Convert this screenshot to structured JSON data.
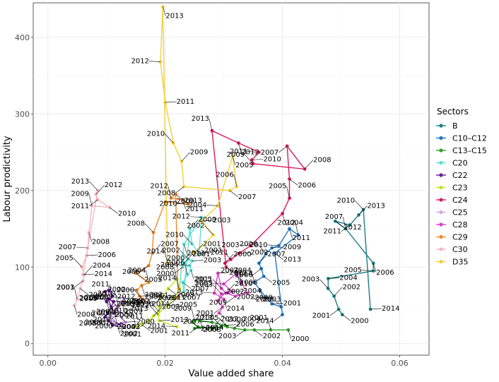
{
  "chart_data": {
    "type": "line",
    "title": "",
    "xlabel": "Value added share",
    "ylabel": "Labour prodictivity",
    "xlim": [
      -0.0025,
      0.065
    ],
    "ylim": [
      -15,
      445
    ],
    "x_ticks": [
      0.0,
      0.02,
      0.04,
      0.06
    ],
    "x_tick_labels": [
      "0.00",
      "0.02",
      "0.04",
      "0.06"
    ],
    "y_ticks": [
      0,
      100,
      200,
      300,
      400
    ],
    "y_tick_labels": [
      "0",
      "100",
      "200",
      "300",
      "400"
    ],
    "grid": true,
    "legend": {
      "title": "Sectors",
      "position": "right"
    },
    "series": [
      {
        "name": "B",
        "color": "#1b7f85",
        "points": [
          {
            "label": "2000",
            "x": 0.0502,
            "y": 38
          },
          {
            "label": "2001",
            "x": 0.0496,
            "y": 45
          },
          {
            "label": "2002",
            "x": 0.0488,
            "y": 62
          },
          {
            "label": "2003",
            "x": 0.0478,
            "y": 72
          },
          {
            "label": "2004",
            "x": 0.0478,
            "y": 85
          },
          {
            "label": "2005",
            "x": 0.0555,
            "y": 95
          },
          {
            "label": "2006",
            "x": 0.0555,
            "y": 105
          },
          {
            "label": "2007",
            "x": 0.0508,
            "y": 150
          },
          {
            "label": "2012",
            "x": 0.049,
            "y": 160
          },
          {
            "label": "2011",
            "x": 0.0515,
            "y": 155
          },
          {
            "label": "2013",
            "x": 0.053,
            "y": 168
          },
          {
            "label": "2010",
            "x": 0.0538,
            "y": 175
          },
          {
            "label": "2014",
            "x": 0.055,
            "y": 45
          }
        ]
      },
      {
        "name": "C10–C12",
        "color": "#1f78c4",
        "points": [
          {
            "label": "2000",
            "x": 0.0398,
            "y": 48
          },
          {
            "label": "2001",
            "x": 0.0382,
            "y": 52
          },
          {
            "label": "2002",
            "x": 0.0372,
            "y": 60
          },
          {
            "label": "2003",
            "x": 0.0362,
            "y": 70
          },
          {
            "label": "2004",
            "x": 0.0352,
            "y": 80
          },
          {
            "label": "2005",
            "x": 0.0368,
            "y": 88
          },
          {
            "label": "2006",
            "x": 0.0364,
            "y": 98
          },
          {
            "label": "2007",
            "x": 0.036,
            "y": 105
          },
          {
            "label": "2008",
            "x": 0.0372,
            "y": 118
          },
          {
            "label": "2009",
            "x": 0.0382,
            "y": 125
          },
          {
            "label": "2010",
            "x": 0.0394,
            "y": 128
          },
          {
            "label": "2011",
            "x": 0.0412,
            "y": 150
          },
          {
            "label": "2012",
            "x": 0.0427,
            "y": 142
          },
          {
            "label": "2013",
            "x": 0.0387,
            "y": 118
          },
          {
            "label": "2014",
            "x": 0.04,
            "y": 38
          }
        ]
      },
      {
        "name": "C13–C15",
        "color": "#33a02c",
        "points": [
          {
            "label": "2000",
            "x": 0.041,
            "y": 18
          },
          {
            "label": "2001",
            "x": 0.038,
            "y": 18
          },
          {
            "label": "2002",
            "x": 0.0352,
            "y": 18
          },
          {
            "label": "2003",
            "x": 0.0336,
            "y": 18
          },
          {
            "label": "2004",
            "x": 0.0318,
            "y": 20
          },
          {
            "label": "2005",
            "x": 0.0306,
            "y": 22
          },
          {
            "label": "2006",
            "x": 0.0302,
            "y": 24
          },
          {
            "label": "2007",
            "x": 0.028,
            "y": 28
          },
          {
            "label": "2008",
            "x": 0.026,
            "y": 30
          },
          {
            "label": "2009",
            "x": 0.025,
            "y": 30
          },
          {
            "label": "2010",
            "x": 0.0246,
            "y": 28
          },
          {
            "label": "2011",
            "x": 0.0256,
            "y": 22
          },
          {
            "label": "2012",
            "x": 0.028,
            "y": 20
          },
          {
            "label": "2013",
            "x": 0.0296,
            "y": 22
          },
          {
            "label": "2014",
            "x": 0.025,
            "y": 20
          }
        ]
      },
      {
        "name": "C20",
        "color": "#5ee0d2",
        "points": [
          {
            "label": "2000",
            "x": 0.023,
            "y": 100
          },
          {
            "label": "2001",
            "x": 0.0232,
            "y": 105
          },
          {
            "label": "2002",
            "x": 0.024,
            "y": 110
          },
          {
            "label": "2003",
            "x": 0.0246,
            "y": 108
          },
          {
            "label": "2004",
            "x": 0.0242,
            "y": 102
          },
          {
            "label": "2005",
            "x": 0.0244,
            "y": 96
          },
          {
            "label": "2006",
            "x": 0.0238,
            "y": 90
          },
          {
            "label": "2007",
            "x": 0.023,
            "y": 80
          },
          {
            "label": "2008",
            "x": 0.0232,
            "y": 68
          },
          {
            "label": "2009",
            "x": 0.0242,
            "y": 150
          },
          {
            "label": "2010",
            "x": 0.0246,
            "y": 130
          },
          {
            "label": "2011",
            "x": 0.0258,
            "y": 118
          },
          {
            "label": "2012",
            "x": 0.0262,
            "y": 165
          },
          {
            "label": "2013",
            "x": 0.0232,
            "y": 130
          },
          {
            "label": "2014",
            "x": 0.0224,
            "y": 70
          }
        ]
      },
      {
        "name": "C22",
        "color": "#6a1b9a",
        "points": [
          {
            "label": "2000",
            "x": 0.0132,
            "y": 28
          },
          {
            "label": "2001",
            "x": 0.0125,
            "y": 26
          },
          {
            "label": "2002",
            "x": 0.0118,
            "y": 25
          },
          {
            "label": "2003",
            "x": 0.011,
            "y": 24
          },
          {
            "label": "2004",
            "x": 0.0104,
            "y": 30
          },
          {
            "label": "2005",
            "x": 0.0098,
            "y": 35
          },
          {
            "label": "2006",
            "x": 0.0102,
            "y": 40
          },
          {
            "label": "2007",
            "x": 0.0108,
            "y": 48
          },
          {
            "label": "2008",
            "x": 0.0112,
            "y": 55
          },
          {
            "label": "2009",
            "x": 0.0104,
            "y": 58
          },
          {
            "label": "2010",
            "x": 0.01,
            "y": 55
          },
          {
            "label": "2011",
            "x": 0.011,
            "y": 62
          },
          {
            "label": "2012",
            "x": 0.0104,
            "y": 70
          },
          {
            "label": "2013",
            "x": 0.0098,
            "y": 68
          },
          {
            "label": "2014",
            "x": 0.0112,
            "y": 40
          }
        ]
      },
      {
        "name": "C23",
        "color": "#c7e22d",
        "points": [
          {
            "label": "2000",
            "x": 0.015,
            "y": 22
          },
          {
            "label": "2001",
            "x": 0.016,
            "y": 25
          },
          {
            "label": "2002",
            "x": 0.0172,
            "y": 30
          },
          {
            "label": "2003",
            "x": 0.018,
            "y": 36
          },
          {
            "label": "2004",
            "x": 0.019,
            "y": 42
          },
          {
            "label": "2005",
            "x": 0.0205,
            "y": 50
          },
          {
            "label": "2006",
            "x": 0.0215,
            "y": 60
          },
          {
            "label": "2007",
            "x": 0.0225,
            "y": 72
          },
          {
            "label": "2008",
            "x": 0.022,
            "y": 84
          },
          {
            "label": "2009",
            "x": 0.0205,
            "y": 72
          },
          {
            "label": "2010",
            "x": 0.0195,
            "y": 60
          },
          {
            "label": "2011",
            "x": 0.019,
            "y": 48
          },
          {
            "label": "2012",
            "x": 0.0188,
            "y": 38
          },
          {
            "label": "2013",
            "x": 0.019,
            "y": 30
          },
          {
            "label": "2014",
            "x": 0.022,
            "y": 22
          }
        ]
      },
      {
        "name": "C24",
        "color": "#d81b60",
        "points": [
          {
            "label": "2000",
            "x": 0.0302,
            "y": 105
          },
          {
            "label": "2001",
            "x": 0.0312,
            "y": 110
          },
          {
            "label": "2002",
            "x": 0.0326,
            "y": 118
          },
          {
            "label": "2003",
            "x": 0.0346,
            "y": 128
          },
          {
            "label": "2004",
            "x": 0.04,
            "y": 170
          },
          {
            "label": "2005",
            "x": 0.0412,
            "y": 190
          },
          {
            "label": "2006",
            "x": 0.0412,
            "y": 215
          },
          {
            "label": "2007",
            "x": 0.0408,
            "y": 258
          },
          {
            "label": "2008",
            "x": 0.0438,
            "y": 228
          },
          {
            "label": "2009",
            "x": 0.035,
            "y": 235
          },
          {
            "label": "2010",
            "x": 0.0348,
            "y": 240
          },
          {
            "label": "2011",
            "x": 0.036,
            "y": 250
          },
          {
            "label": "2012",
            "x": 0.0325,
            "y": 262
          },
          {
            "label": "2013",
            "x": 0.028,
            "y": 278
          },
          {
            "label": "2014",
            "x": 0.0304,
            "y": 100
          }
        ]
      },
      {
        "name": "C25",
        "color": "#d6a6e8",
        "points": [
          {
            "label": "2000",
            "x": 0.013,
            "y": 22
          },
          {
            "label": "2001",
            "x": 0.0124,
            "y": 24
          },
          {
            "label": "2002",
            "x": 0.0118,
            "y": 26
          },
          {
            "label": "2003",
            "x": 0.0112,
            "y": 30
          },
          {
            "label": "2004",
            "x": 0.0108,
            "y": 36
          },
          {
            "label": "2005",
            "x": 0.0112,
            "y": 42
          },
          {
            "label": "2006",
            "x": 0.0118,
            "y": 48
          },
          {
            "label": "2007",
            "x": 0.0124,
            "y": 54
          },
          {
            "label": "2008",
            "x": 0.013,
            "y": 60
          },
          {
            "label": "2009",
            "x": 0.0126,
            "y": 54
          },
          {
            "label": "2010",
            "x": 0.012,
            "y": 50
          },
          {
            "label": "2011",
            "x": 0.0118,
            "y": 44
          },
          {
            "label": "2012",
            "x": 0.0122,
            "y": 40
          },
          {
            "label": "2013",
            "x": 0.0126,
            "y": 34
          },
          {
            "label": "2014",
            "x": 0.0132,
            "y": 28
          }
        ]
      },
      {
        "name": "C28",
        "color": "#e040c8",
        "points": [
          {
            "label": "2000",
            "x": 0.0292,
            "y": 40
          },
          {
            "label": "2001",
            "x": 0.0298,
            "y": 48
          },
          {
            "label": "2002",
            "x": 0.029,
            "y": 56
          },
          {
            "label": "2003",
            "x": 0.0296,
            "y": 65
          },
          {
            "label": "2004",
            "x": 0.0314,
            "y": 68
          },
          {
            "label": "2005",
            "x": 0.03,
            "y": 78
          },
          {
            "label": "2006",
            "x": 0.0322,
            "y": 92
          },
          {
            "label": "2007",
            "x": 0.033,
            "y": 80
          },
          {
            "label": "2008",
            "x": 0.034,
            "y": 66
          },
          {
            "label": "2009",
            "x": 0.032,
            "y": 62
          },
          {
            "label": "2010",
            "x": 0.0304,
            "y": 66
          },
          {
            "label": "2011",
            "x": 0.0296,
            "y": 72
          },
          {
            "label": "2012",
            "x": 0.029,
            "y": 92
          },
          {
            "label": "2013",
            "x": 0.0284,
            "y": 66
          },
          {
            "label": "2014",
            "x": 0.03,
            "y": 58
          }
        ]
      },
      {
        "name": "C29",
        "color": "#f08a2c",
        "points": [
          {
            "label": "2000",
            "x": 0.0162,
            "y": 58
          },
          {
            "label": "2001",
            "x": 0.0156,
            "y": 62
          },
          {
            "label": "2002",
            "x": 0.0152,
            "y": 70
          },
          {
            "label": "2003",
            "x": 0.016,
            "y": 76
          },
          {
            "label": "2004",
            "x": 0.0172,
            "y": 80
          },
          {
            "label": "2005",
            "x": 0.015,
            "y": 92
          },
          {
            "label": "2006",
            "x": 0.0172,
            "y": 102
          },
          {
            "label": "2007",
            "x": 0.0178,
            "y": 118
          },
          {
            "label": "2008",
            "x": 0.018,
            "y": 145
          },
          {
            "label": "2009",
            "x": 0.02,
            "y": 185
          },
          {
            "label": "2010",
            "x": 0.024,
            "y": 182
          },
          {
            "label": "2011",
            "x": 0.023,
            "y": 188
          },
          {
            "label": "2012",
            "x": 0.021,
            "y": 190
          },
          {
            "label": "2013",
            "x": 0.0218,
            "y": 195
          },
          {
            "label": "2014",
            "x": 0.0222,
            "y": 60
          }
        ]
      },
      {
        "name": "C30",
        "color": "#f4b8c0",
        "points": [
          {
            "label": "2000",
            "x": 0.0045,
            "y": 50
          },
          {
            "label": "2001",
            "x": 0.005,
            "y": 58
          },
          {
            "label": "2002",
            "x": 0.0055,
            "y": 72
          },
          {
            "label": "2003",
            "x": 0.006,
            "y": 82
          },
          {
            "label": "2004",
            "x": 0.0062,
            "y": 90
          },
          {
            "label": "2005",
            "x": 0.0058,
            "y": 100
          },
          {
            "label": "2006",
            "x": 0.0066,
            "y": 115
          },
          {
            "label": "2007",
            "x": 0.0068,
            "y": 125
          },
          {
            "label": "2008",
            "x": 0.007,
            "y": 145
          },
          {
            "label": "2009",
            "x": 0.0075,
            "y": 180
          },
          {
            "label": "2010",
            "x": 0.0105,
            "y": 178
          },
          {
            "label": "2011",
            "x": 0.0085,
            "y": 188
          },
          {
            "label": "2012",
            "x": 0.0082,
            "y": 195
          },
          {
            "label": "2013",
            "x": 0.0085,
            "y": 200
          },
          {
            "label": "2014",
            "x": 0.006,
            "y": 90
          }
        ]
      },
      {
        "name": "D35",
        "color": "#f2d03b",
        "points": [
          {
            "label": "2000",
            "x": 0.0248,
            "y": 120
          },
          {
            "label": "2001",
            "x": 0.025,
            "y": 118
          },
          {
            "label": "2002",
            "x": 0.0282,
            "y": 142
          },
          {
            "label": "2003",
            "x": 0.0262,
            "y": 160
          },
          {
            "label": "2004",
            "x": 0.029,
            "y": 180
          },
          {
            "label": "2005",
            "x": 0.0315,
            "y": 245
          },
          {
            "label": "2006",
            "x": 0.0322,
            "y": 205
          },
          {
            "label": "2007",
            "x": 0.031,
            "y": 200
          },
          {
            "label": "2008",
            "x": 0.0232,
            "y": 205
          },
          {
            "label": "2009",
            "x": 0.0228,
            "y": 238
          },
          {
            "label": "2010",
            "x": 0.0214,
            "y": 262
          },
          {
            "label": "2011",
            "x": 0.02,
            "y": 315
          },
          {
            "label": "2012",
            "x": 0.0192,
            "y": 368
          },
          {
            "label": "2013",
            "x": 0.0196,
            "y": 440
          },
          {
            "label": "2014",
            "x": 0.0204,
            "y": 105
          }
        ]
      }
    ]
  }
}
